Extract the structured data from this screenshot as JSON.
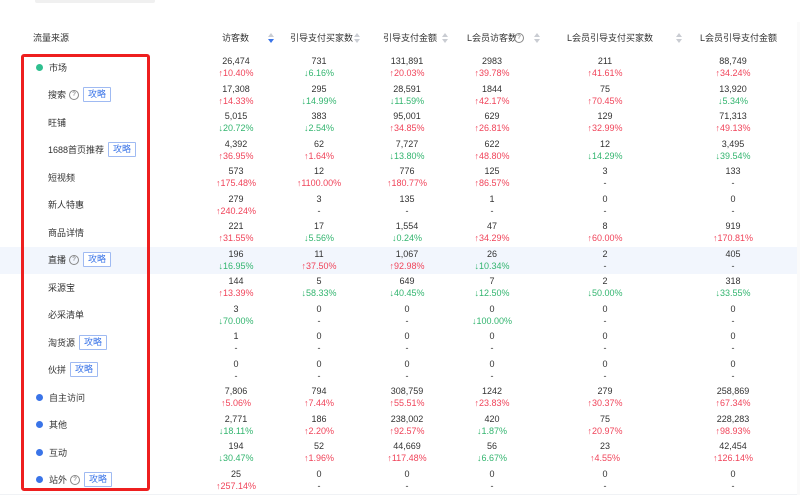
{
  "header": {
    "source": "流量来源",
    "columns": [
      "访客数",
      "引导支付买家数",
      "引导支付金额",
      "L会员访客数",
      "L会员引导支付买家数",
      "L会员引导支付金额"
    ]
  },
  "colors": {
    "up": "#f0445a",
    "down": "#33b56f",
    "accent": "#3a74e8",
    "highlight": "#ee1f1f"
  },
  "rows": [
    {
      "label": "市场",
      "icon": "dot-green",
      "help": false,
      "tag": "",
      "highlight": false,
      "cells": [
        {
          "v": "26,474",
          "c": "10.40%",
          "d": "up"
        },
        {
          "v": "731",
          "c": "6.16%",
          "d": "down"
        },
        {
          "v": "131,891",
          "c": "20.03%",
          "d": "up"
        },
        {
          "v": "2983",
          "c": "39.78%",
          "d": "up"
        },
        {
          "v": "211",
          "c": "41.61%",
          "d": "up"
        },
        {
          "v": "88,749",
          "c": "34.24%",
          "d": "up"
        }
      ]
    },
    {
      "label": "搜索",
      "icon": "",
      "help": true,
      "tag": "攻略",
      "highlight": false,
      "cells": [
        {
          "v": "17,308",
          "c": "14.33%",
          "d": "up"
        },
        {
          "v": "295",
          "c": "14.99%",
          "d": "down"
        },
        {
          "v": "28,591",
          "c": "11.59%",
          "d": "down"
        },
        {
          "v": "1844",
          "c": "42.17%",
          "d": "up"
        },
        {
          "v": "75",
          "c": "70.45%",
          "d": "up"
        },
        {
          "v": "13,920",
          "c": "5.34%",
          "d": "down"
        }
      ]
    },
    {
      "label": "旺铺",
      "icon": "",
      "help": false,
      "tag": "",
      "highlight": false,
      "cells": [
        {
          "v": "5,015",
          "c": "20.72%",
          "d": "down"
        },
        {
          "v": "383",
          "c": "2.54%",
          "d": "down"
        },
        {
          "v": "95,001",
          "c": "34.85%",
          "d": "up"
        },
        {
          "v": "629",
          "c": "26.81%",
          "d": "up"
        },
        {
          "v": "129",
          "c": "32.99%",
          "d": "up"
        },
        {
          "v": "71,313",
          "c": "49.13%",
          "d": "up"
        }
      ]
    },
    {
      "label": "1688首页推荐",
      "icon": "",
      "help": false,
      "tag": "攻略",
      "highlight": false,
      "cells": [
        {
          "v": "4,392",
          "c": "36.95%",
          "d": "up"
        },
        {
          "v": "62",
          "c": "1.64%",
          "d": "up"
        },
        {
          "v": "7,727",
          "c": "13.80%",
          "d": "down"
        },
        {
          "v": "622",
          "c": "48.80%",
          "d": "up"
        },
        {
          "v": "12",
          "c": "14.29%",
          "d": "down"
        },
        {
          "v": "3,495",
          "c": "39.54%",
          "d": "down"
        }
      ]
    },
    {
      "label": "短视频",
      "icon": "",
      "help": false,
      "tag": "",
      "highlight": false,
      "cells": [
        {
          "v": "573",
          "c": "175.48%",
          "d": "up"
        },
        {
          "v": "12",
          "c": "1100.00%",
          "d": "up"
        },
        {
          "v": "776",
          "c": "180.77%",
          "d": "up"
        },
        {
          "v": "125",
          "c": "86.57%",
          "d": "up"
        },
        {
          "v": "3",
          "c": "-",
          "d": ""
        },
        {
          "v": "133",
          "c": "-",
          "d": ""
        }
      ]
    },
    {
      "label": "新人特惠",
      "icon": "",
      "help": false,
      "tag": "",
      "highlight": false,
      "cells": [
        {
          "v": "279",
          "c": "240.24%",
          "d": "up"
        },
        {
          "v": "3",
          "c": "-",
          "d": ""
        },
        {
          "v": "135",
          "c": "-",
          "d": ""
        },
        {
          "v": "1",
          "c": "-",
          "d": ""
        },
        {
          "v": "0",
          "c": "-",
          "d": ""
        },
        {
          "v": "0",
          "c": "-",
          "d": ""
        }
      ]
    },
    {
      "label": "商品详情",
      "icon": "",
      "help": false,
      "tag": "",
      "highlight": false,
      "cells": [
        {
          "v": "221",
          "c": "31.55%",
          "d": "up"
        },
        {
          "v": "17",
          "c": "5.56%",
          "d": "down"
        },
        {
          "v": "1,554",
          "c": "0.24%",
          "d": "down"
        },
        {
          "v": "47",
          "c": "34.29%",
          "d": "up"
        },
        {
          "v": "8",
          "c": "60.00%",
          "d": "up"
        },
        {
          "v": "919",
          "c": "170.81%",
          "d": "up"
        }
      ]
    },
    {
      "label": "直播",
      "icon": "",
      "help": true,
      "tag": "攻略",
      "highlight": true,
      "cells": [
        {
          "v": "196",
          "c": "16.95%",
          "d": "down"
        },
        {
          "v": "11",
          "c": "37.50%",
          "d": "up"
        },
        {
          "v": "1,067",
          "c": "92.98%",
          "d": "up"
        },
        {
          "v": "26",
          "c": "10.34%",
          "d": "down"
        },
        {
          "v": "2",
          "c": "-",
          "d": ""
        },
        {
          "v": "405",
          "c": "-",
          "d": ""
        }
      ]
    },
    {
      "label": "采源宝",
      "icon": "",
      "help": false,
      "tag": "",
      "highlight": false,
      "cells": [
        {
          "v": "144",
          "c": "13.39%",
          "d": "up"
        },
        {
          "v": "5",
          "c": "58.33%",
          "d": "down"
        },
        {
          "v": "649",
          "c": "40.45%",
          "d": "down"
        },
        {
          "v": "7",
          "c": "12.50%",
          "d": "down"
        },
        {
          "v": "2",
          "c": "50.00%",
          "d": "down"
        },
        {
          "v": "318",
          "c": "33.55%",
          "d": "down"
        }
      ]
    },
    {
      "label": "必采清单",
      "icon": "",
      "help": false,
      "tag": "",
      "highlight": false,
      "cells": [
        {
          "v": "3",
          "c": "70.00%",
          "d": "down"
        },
        {
          "v": "0",
          "c": "-",
          "d": ""
        },
        {
          "v": "0",
          "c": "-",
          "d": ""
        },
        {
          "v": "0",
          "c": "100.00%",
          "d": "down"
        },
        {
          "v": "0",
          "c": "-",
          "d": ""
        },
        {
          "v": "0",
          "c": "-",
          "d": ""
        }
      ]
    },
    {
      "label": "淘货源",
      "icon": "",
      "help": false,
      "tag": "攻略",
      "highlight": false,
      "cells": [
        {
          "v": "1",
          "c": "-",
          "d": ""
        },
        {
          "v": "0",
          "c": "-",
          "d": ""
        },
        {
          "v": "0",
          "c": "-",
          "d": ""
        },
        {
          "v": "0",
          "c": "-",
          "d": ""
        },
        {
          "v": "0",
          "c": "-",
          "d": ""
        },
        {
          "v": "0",
          "c": "-",
          "d": ""
        }
      ]
    },
    {
      "label": "伙拼",
      "icon": "",
      "help": false,
      "tag": "攻略",
      "highlight": false,
      "cells": [
        {
          "v": "0",
          "c": "-",
          "d": ""
        },
        {
          "v": "0",
          "c": "-",
          "d": ""
        },
        {
          "v": "0",
          "c": "-",
          "d": ""
        },
        {
          "v": "0",
          "c": "-",
          "d": ""
        },
        {
          "v": "0",
          "c": "-",
          "d": ""
        },
        {
          "v": "0",
          "c": "-",
          "d": ""
        }
      ]
    },
    {
      "label": "自主访问",
      "icon": "dot-blue",
      "help": false,
      "tag": "",
      "highlight": false,
      "cells": [
        {
          "v": "7,806",
          "c": "5.06%",
          "d": "up"
        },
        {
          "v": "794",
          "c": "7.44%",
          "d": "up"
        },
        {
          "v": "308,759",
          "c": "55.51%",
          "d": "up"
        },
        {
          "v": "1242",
          "c": "23.83%",
          "d": "up"
        },
        {
          "v": "279",
          "c": "30.37%",
          "d": "up"
        },
        {
          "v": "258,869",
          "c": "67.34%",
          "d": "up"
        }
      ]
    },
    {
      "label": "其他",
      "icon": "dot-blue",
      "help": false,
      "tag": "",
      "highlight": false,
      "cells": [
        {
          "v": "2,771",
          "c": "18.11%",
          "d": "down"
        },
        {
          "v": "186",
          "c": "2.20%",
          "d": "up"
        },
        {
          "v": "238,002",
          "c": "92.57%",
          "d": "up"
        },
        {
          "v": "420",
          "c": "1.87%",
          "d": "down"
        },
        {
          "v": "75",
          "c": "20.97%",
          "d": "up"
        },
        {
          "v": "228,283",
          "c": "98.93%",
          "d": "up"
        }
      ]
    },
    {
      "label": "互动",
      "icon": "dot-blue",
      "help": false,
      "tag": "",
      "highlight": false,
      "cells": [
        {
          "v": "194",
          "c": "30.47%",
          "d": "down"
        },
        {
          "v": "52",
          "c": "1.96%",
          "d": "up"
        },
        {
          "v": "44,669",
          "c": "117.48%",
          "d": "up"
        },
        {
          "v": "56",
          "c": "6.67%",
          "d": "down"
        },
        {
          "v": "23",
          "c": "4.55%",
          "d": "up"
        },
        {
          "v": "42,454",
          "c": "126.14%",
          "d": "up"
        }
      ]
    },
    {
      "label": "站外",
      "icon": "dot-blue",
      "help": true,
      "tag": "攻略",
      "highlight": false,
      "cells": [
        {
          "v": "25",
          "c": "257.14%",
          "d": "up"
        },
        {
          "v": "0",
          "c": "-",
          "d": ""
        },
        {
          "v": "0",
          "c": "-",
          "d": ""
        },
        {
          "v": "0",
          "c": "-",
          "d": ""
        },
        {
          "v": "0",
          "c": "-",
          "d": ""
        },
        {
          "v": "0",
          "c": "-",
          "d": ""
        }
      ]
    }
  ]
}
